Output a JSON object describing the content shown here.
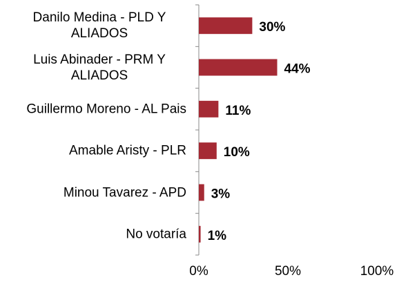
{
  "chart_data": {
    "type": "bar",
    "orientation": "horizontal",
    "categories": [
      "Danilo Medina - PLD Y ALIADOS",
      "Luis Abinader - PRM Y ALIADOS",
      "Guillermo Moreno - AL Pais",
      "Amable Aristy - PLR",
      "Minou Tavarez - APD",
      "No votaría"
    ],
    "values": [
      30,
      44,
      11,
      10,
      3,
      1
    ],
    "value_labels": [
      "30%",
      "44%",
      "11%",
      "10%",
      "3%",
      "1%"
    ],
    "color": "#a52a34",
    "xlim": [
      0,
      100
    ],
    "xticks": [
      {
        "value": 0,
        "label": "0%"
      },
      {
        "value": 50,
        "label": "50%"
      },
      {
        "value": 100,
        "label": "100%"
      }
    ]
  }
}
